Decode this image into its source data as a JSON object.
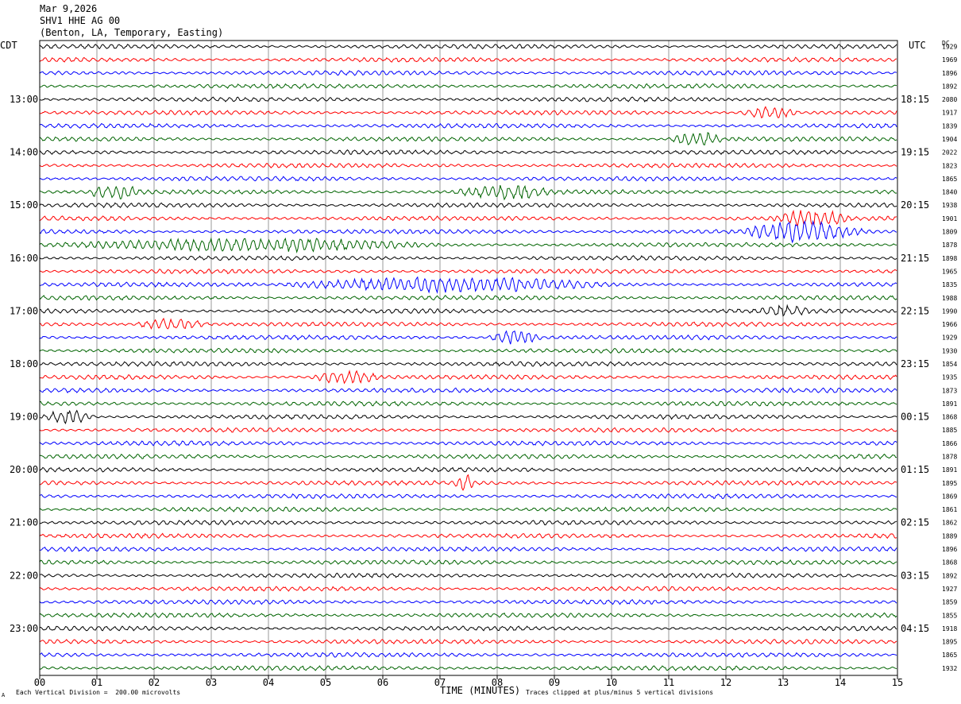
{
  "header": {
    "date": "Mar 9,2026",
    "station": "SHV1 HHE AG 00",
    "location": "(Benton, LA, Temporary, Easting)"
  },
  "left_tz": "CDT",
  "right_tz": "UTC",
  "dc_label": "DC",
  "footer": {
    "scale": "Each Vertical Division =  200.00 microvolts",
    "clip": "Traces clipped at plus/minus 5 vertical divisions",
    "corner": "A"
  },
  "colors": {
    "black": "#000000",
    "red": "#ff0000",
    "blue": "#0000ff",
    "green": "#006400",
    "grid": "#808080"
  },
  "chart_data": {
    "type": "line",
    "title": "SHV1 HHE AG 00",
    "xlabel": "TIME (MINUTES)",
    "xlim": [
      0,
      15
    ],
    "x_ticks": [
      "00",
      "01",
      "02",
      "03",
      "04",
      "05",
      "06",
      "07",
      "08",
      "09",
      "10",
      "11",
      "12",
      "13",
      "14",
      "15"
    ],
    "trace_color_cycle": [
      "black",
      "red",
      "blue",
      "green"
    ],
    "left_hour_labels": [
      "13:00",
      "14:00",
      "15:00",
      "16:00",
      "17:00",
      "18:00",
      "19:00",
      "20:00",
      "21:00",
      "22:00",
      "23:00"
    ],
    "right_hour_labels": [
      "18:15",
      "19:15",
      "20:15",
      "21:15",
      "22:15",
      "23:15",
      "00:15",
      "01:15",
      "02:15",
      "03:15",
      "04:15"
    ],
    "dc_offsets": [
      "1929",
      "1969",
      "1896",
      "1892",
      "2080",
      "1917",
      "1839",
      "1904",
      "2022",
      "1823",
      "1865",
      "1840",
      "1938",
      "1901",
      "1809",
      "1878",
      "1898",
      "1965",
      "1835",
      "1988",
      "1990",
      "1966",
      "1929",
      "1930",
      "1854",
      "1935",
      "1873",
      "1891",
      "1868",
      "1885",
      "1866",
      "1878",
      "1891",
      "1895",
      "1869",
      "1861",
      "1862",
      "1889",
      "1896",
      "1868",
      "1892",
      "1927",
      "1859",
      "1855",
      "1918",
      "1895",
      "1865",
      "1932"
    ],
    "events": [
      {
        "trace": 5,
        "minute_start": 12.2,
        "minute_end": 13.3,
        "amplitude": 2.2
      },
      {
        "trace": 7,
        "minute_start": 11.0,
        "minute_end": 12.0,
        "amplitude": 2.5
      },
      {
        "trace": 11,
        "minute_start": 0.8,
        "minute_end": 1.8,
        "amplitude": 2.8
      },
      {
        "trace": 11,
        "minute_start": 7.2,
        "minute_end": 9.0,
        "amplitude": 2.4
      },
      {
        "trace": 13,
        "minute_start": 12.8,
        "minute_end": 14.2,
        "amplitude": 2.8
      },
      {
        "trace": 14,
        "minute_start": 12.2,
        "minute_end": 14.5,
        "amplitude": 3.5
      },
      {
        "trace": 15,
        "minute_start": 0.0,
        "minute_end": 7.0,
        "amplitude": 2.2
      },
      {
        "trace": 18,
        "minute_start": 4.0,
        "minute_end": 10.0,
        "amplitude": 2.6
      },
      {
        "trace": 20,
        "minute_start": 12.5,
        "minute_end": 13.5,
        "amplitude": 2.0
      },
      {
        "trace": 21,
        "minute_start": 1.6,
        "minute_end": 3.0,
        "amplitude": 2.0
      },
      {
        "trace": 22,
        "minute_start": 7.8,
        "minute_end": 8.8,
        "amplitude": 2.6
      },
      {
        "trace": 25,
        "minute_start": 4.7,
        "minute_end": 6.0,
        "amplitude": 2.4
      },
      {
        "trace": 28,
        "minute_start": 0.0,
        "minute_end": 1.0,
        "amplitude": 2.4
      },
      {
        "trace": 33,
        "minute_start": 7.25,
        "minute_end": 7.6,
        "amplitude": 3.5
      }
    ]
  }
}
